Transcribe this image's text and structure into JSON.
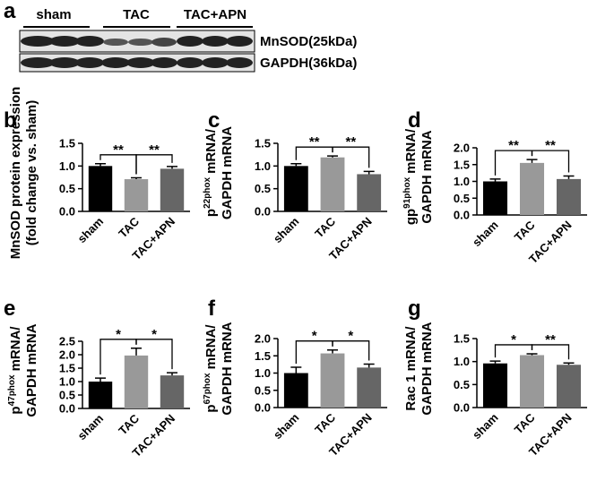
{
  "panel_a": {
    "panel": "a",
    "groups": [
      "sham",
      "TAC",
      "TAC+APN"
    ],
    "bands": [
      "MnSOD(25kDa)",
      "GAPDH(36kDa)"
    ]
  },
  "chart_data": [
    {
      "type": "bar",
      "panel": "b",
      "ylabel": [
        [
          "MnSOD protein expression"
        ],
        [
          "(fold change vs. sham)"
        ]
      ],
      "categories": [
        "sham",
        "TAC",
        "TAC+APN"
      ],
      "values": [
        1.0,
        0.71,
        0.94
      ],
      "errors": [
        0.05,
        0.03,
        0.05
      ],
      "colors": [
        "#000000",
        "#999999",
        "#666666"
      ],
      "ylim": [
        0,
        1.5
      ],
      "yticks": [
        {
          "value": 0,
          "label": "0.0"
        },
        0.5,
        {
          "value": 1,
          "label": "1.0"
        },
        1.5
      ],
      "significance": [
        "**",
        "**"
      ]
    },
    {
      "type": "bar",
      "panel": "c",
      "ylabel": [
        [
          "p",
          "22phox",
          "mRNA/"
        ],
        [
          "GAPDH mRNA"
        ]
      ],
      "categories": [
        "sham",
        "TAC",
        "TAC+APN"
      ],
      "values": [
        1.0,
        1.19,
        0.82
      ],
      "errors": [
        0.05,
        0.03,
        0.06
      ],
      "colors": [
        "#000000",
        "#999999",
        "#666666"
      ],
      "ylim": [
        0,
        1.5
      ],
      "yticks": [
        {
          "value": 0,
          "label": "0.0"
        },
        0.5,
        {
          "value": 1,
          "label": "1.0"
        },
        1.5
      ],
      "significance": [
        "**",
        "**"
      ]
    },
    {
      "type": "bar",
      "panel": "d",
      "ylabel": [
        [
          "gp",
          "91phox",
          "mRNA/"
        ],
        [
          "GAPDH mRNA"
        ]
      ],
      "categories": [
        "sham",
        "TAC",
        "TAC+APN"
      ],
      "values": [
        1.0,
        1.55,
        1.07
      ],
      "errors": [
        0.07,
        0.1,
        0.09
      ],
      "colors": [
        "#000000",
        "#999999",
        "#666666"
      ],
      "ylim": [
        0,
        2
      ],
      "yticks": [
        {
          "value": 0,
          "label": "0.0"
        },
        0.5,
        {
          "value": 1,
          "label": "1.0"
        },
        1.5,
        {
          "value": 2,
          "label": "2.0"
        }
      ],
      "significance": [
        "**",
        "**"
      ]
    },
    {
      "type": "bar",
      "panel": "e",
      "ylabel": [
        [
          "p",
          "47phox",
          "mRNA/"
        ],
        [
          "GAPDH mRNA"
        ]
      ],
      "categories": [
        "sham",
        "TAC",
        "TAC+APN"
      ],
      "values": [
        1.0,
        1.97,
        1.23
      ],
      "errors": [
        0.13,
        0.27,
        0.1
      ],
      "colors": [
        "#000000",
        "#999999",
        "#666666"
      ],
      "ylim": [
        0,
        2.5
      ],
      "yticks": [
        {
          "value": 0,
          "label": "0.0"
        },
        0.5,
        {
          "value": 1,
          "label": "1.0"
        },
        1.5,
        {
          "value": 2,
          "label": "2.0"
        },
        2.5
      ],
      "significance": [
        "*",
        "*"
      ]
    },
    {
      "type": "bar",
      "panel": "f",
      "ylabel": [
        [
          "p",
          "67phox",
          "mRNA/"
        ],
        [
          "GAPDH mRNA"
        ]
      ],
      "categories": [
        "sham",
        "TAC",
        "TAC+APN"
      ],
      "values": [
        1.0,
        1.57,
        1.16
      ],
      "errors": [
        0.17,
        0.1,
        0.1
      ],
      "colors": [
        "#000000",
        "#999999",
        "#666666"
      ],
      "ylim": [
        0,
        2
      ],
      "yticks": [
        {
          "value": 0,
          "label": "0.0"
        },
        0.5,
        {
          "value": 1,
          "label": "1.0"
        },
        1.5,
        {
          "value": 2,
          "label": "2.0"
        }
      ],
      "significance": [
        "*",
        "*"
      ]
    },
    {
      "type": "bar",
      "panel": "g",
      "ylabel": [
        [
          "Rac 1 mRNA/"
        ],
        [
          "GAPDH mRNA"
        ]
      ],
      "categories": [
        "sham",
        "TAC",
        "TAC+APN"
      ],
      "values": [
        0.96,
        1.14,
        0.93
      ],
      "errors": [
        0.05,
        0.03,
        0.04
      ],
      "colors": [
        "#000000",
        "#999999",
        "#666666"
      ],
      "ylim": [
        0,
        1.5
      ],
      "yticks": [
        {
          "value": 0,
          "label": "0.0"
        },
        0.5,
        {
          "value": 1,
          "label": "1.0"
        },
        1.5
      ],
      "significance": [
        "*",
        "**"
      ]
    }
  ]
}
